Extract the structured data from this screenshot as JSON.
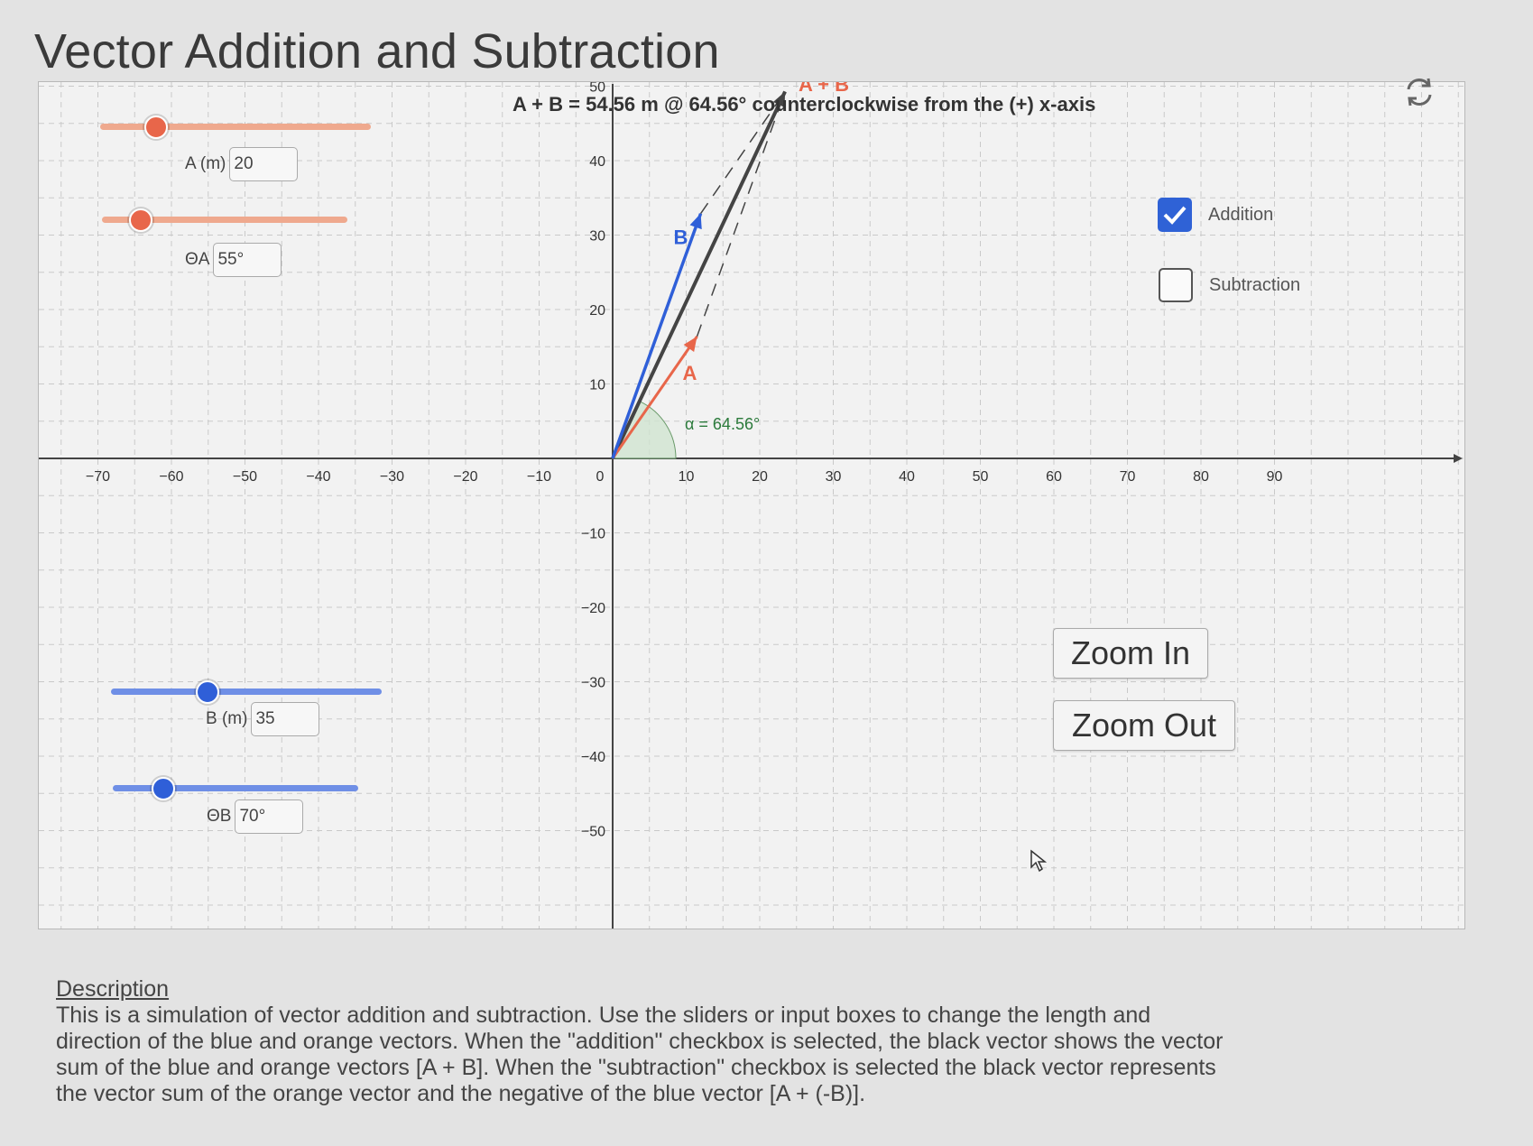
{
  "title": "Vector Addition and Subtraction",
  "result": {
    "text": "A + B = 54.56 m @ 64.56° counterclockwise from the (+) x-axis",
    "sum_label": "A + B",
    "alpha_label": "α = 64.56°"
  },
  "vectors": {
    "A": {
      "label": "A",
      "magnitude": 20,
      "angle_deg": 55,
      "color": "#e8664a"
    },
    "B": {
      "label": "B",
      "magnitude": 35,
      "angle_deg": 70,
      "color": "#2f5fd8"
    },
    "sum": {
      "magnitude": 54.56,
      "angle_deg": 64.56,
      "color": "#444444"
    }
  },
  "controls": {
    "A_len": {
      "label": "A (m)",
      "value": "20",
      "slider_fraction": 0.2
    },
    "A_angle": {
      "label": "ΘA",
      "value": "55°",
      "slider_fraction": 0.15
    },
    "B_len": {
      "label": "B (m)",
      "value": "35",
      "slider_fraction": 0.35
    },
    "B_angle": {
      "label": "ΘB",
      "value": "70°",
      "slider_fraction": 0.2
    }
  },
  "checkboxes": [
    {
      "label": "Addition",
      "checked": true
    },
    {
      "label": "Subtraction",
      "checked": false
    }
  ],
  "buttons": {
    "zoom_in": "Zoom In",
    "zoom_out": "Zoom Out"
  },
  "axes": {
    "x_ticks": [
      -70,
      -60,
      -50,
      -40,
      -30,
      -20,
      -10,
      0,
      10,
      20,
      30,
      40,
      50,
      60,
      70,
      80,
      90
    ],
    "y_ticks": [
      50,
      40,
      30,
      20,
      10,
      -10,
      -20,
      -30,
      -40,
      -50
    ],
    "grid": true
  },
  "icons": {
    "refresh": "refresh-icon",
    "cursor": "mouse-pointer-icon"
  },
  "description": {
    "heading": "Description",
    "body": "This is a simulation of vector addition and subtraction. Use the sliders or input boxes to change the length and direction of the blue and orange vectors. When the \"addition\" checkbox is selected, the black vector shows the vector sum of the blue and orange vectors [A + B]. When the \"subtraction\" checkbox is selected the black vector represents the vector sum of the orange vector and the negative of the blue vector [A + (-B)]."
  }
}
